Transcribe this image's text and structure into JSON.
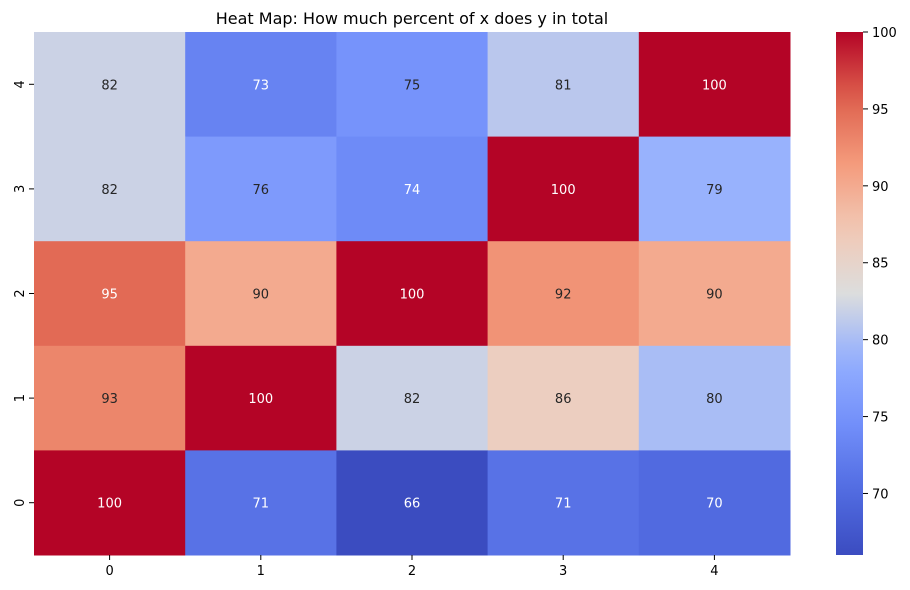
{
  "chart_data": {
    "type": "heatmap",
    "title": "Heat Map: How much percent of x does y in total",
    "xlabel": "",
    "ylabel": "",
    "x_categories": [
      "0",
      "1",
      "2",
      "3",
      "4"
    ],
    "y_categories": [
      "4",
      "3",
      "2",
      "1",
      "0"
    ],
    "values": [
      [
        82,
        73,
        75,
        81,
        100
      ],
      [
        82,
        76,
        74,
        100,
        79
      ],
      [
        95,
        90,
        100,
        92,
        90
      ],
      [
        93,
        100,
        82,
        86,
        80
      ],
      [
        100,
        71,
        66,
        71,
        70
      ]
    ],
    "colormap": "coolwarm",
    "vmin": 66,
    "vmax": 100,
    "colorbar_ticks": [
      70,
      75,
      80,
      85,
      90,
      95,
      100
    ],
    "annotate": true
  }
}
